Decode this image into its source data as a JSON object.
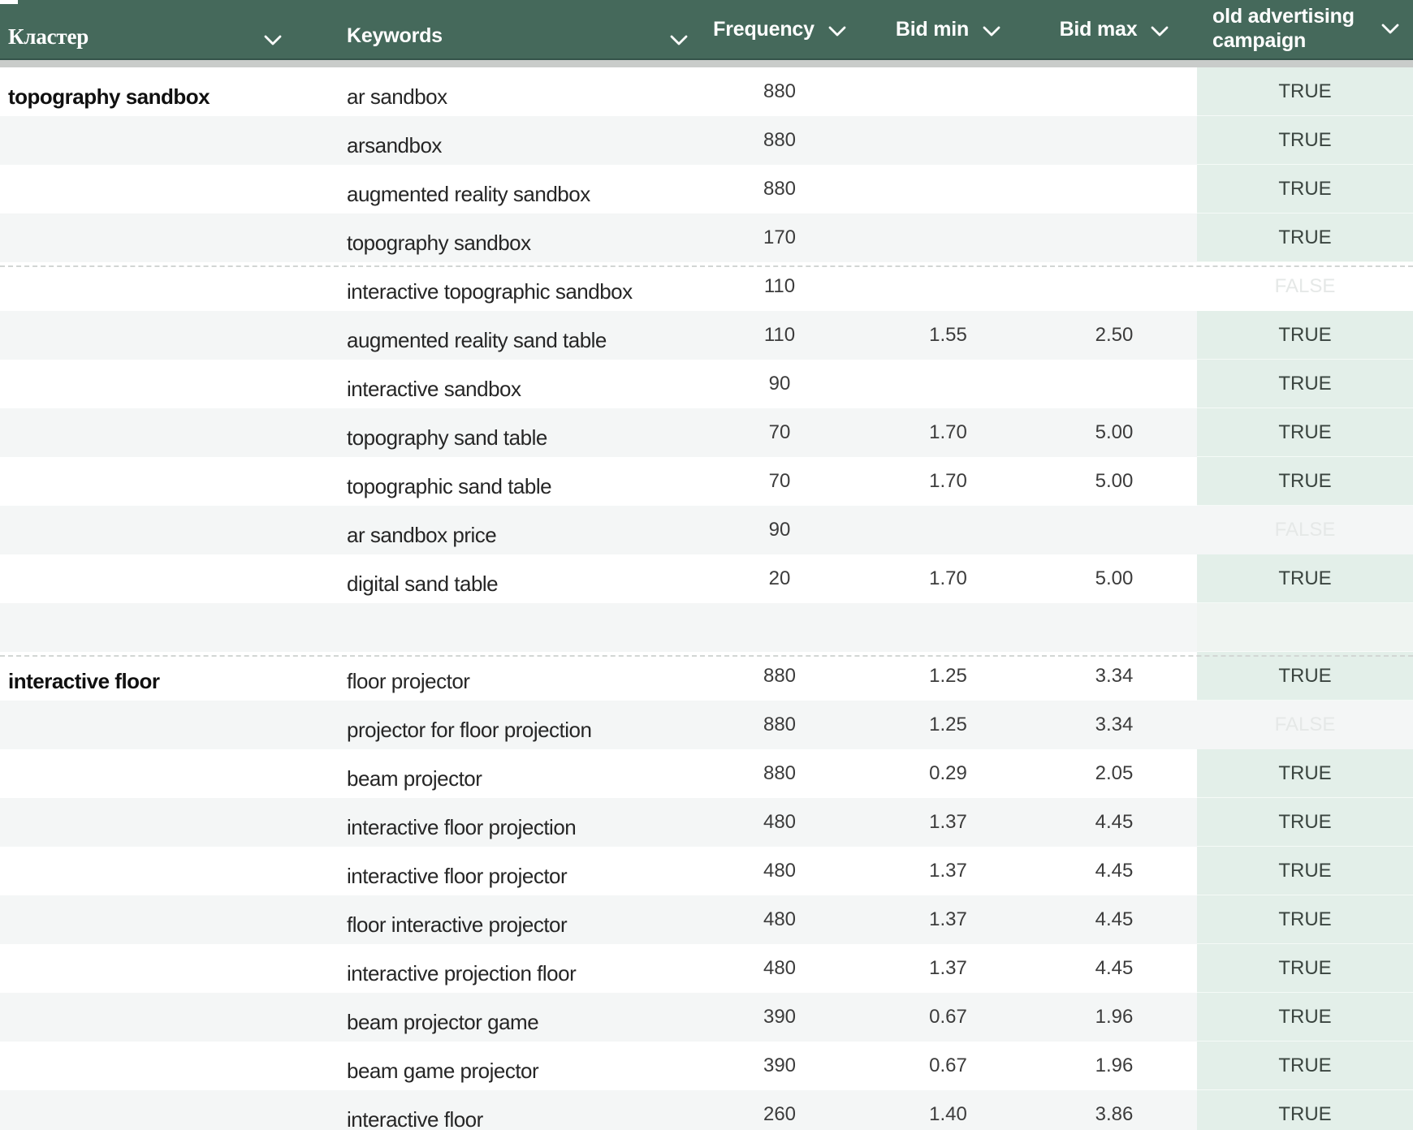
{
  "header": {
    "columns": [
      {
        "label": "Кластер"
      },
      {
        "label": "Keywords"
      },
      {
        "label": "Frequency"
      },
      {
        "label": "Bid min"
      },
      {
        "label": "Bid max"
      },
      {
        "label": "old advertising campaign"
      }
    ]
  },
  "colors": {
    "header_bg": "#45695B",
    "header_text": "#FFFFFF",
    "row_alt_bg": "#F4F6F6",
    "campaign_true_bg": "#E3EFE9",
    "campaign_true_text": "#3A443F",
    "campaign_false_text": "#E5E8E7"
  },
  "table": {
    "rows": [
      {
        "cluster": "topography sandbox",
        "keyword": "ar sandbox",
        "frequency": "880",
        "bid_min": "",
        "bid_max": "",
        "campaign": "TRUE"
      },
      {
        "cluster": "",
        "keyword": "arsandbox",
        "frequency": "880",
        "bid_min": "",
        "bid_max": "",
        "campaign": "TRUE"
      },
      {
        "cluster": "",
        "keyword": "augmented reality sandbox",
        "frequency": "880",
        "bid_min": "",
        "bid_max": "",
        "campaign": "TRUE"
      },
      {
        "cluster": "",
        "keyword": "topography sandbox",
        "frequency": "170",
        "bid_min": "",
        "bid_max": "",
        "campaign": "TRUE"
      },
      {
        "cluster": "",
        "keyword": "interactive topographic sandbox",
        "frequency": "110",
        "bid_min": "",
        "bid_max": "",
        "campaign": "FALSE",
        "dashed_top": true
      },
      {
        "cluster": "",
        "keyword": "augmented reality sand table",
        "frequency": "110",
        "bid_min": "1.55",
        "bid_max": "2.50",
        "campaign": "TRUE"
      },
      {
        "cluster": "",
        "keyword": "interactive sandbox",
        "frequency": "90",
        "bid_min": "",
        "bid_max": "",
        "campaign": "TRUE"
      },
      {
        "cluster": "",
        "keyword": "topography sand table",
        "frequency": "70",
        "bid_min": "1.70",
        "bid_max": "5.00",
        "campaign": "TRUE"
      },
      {
        "cluster": "",
        "keyword": "topographic sand table",
        "frequency": "70",
        "bid_min": "1.70",
        "bid_max": "5.00",
        "campaign": "TRUE"
      },
      {
        "cluster": "",
        "keyword": "ar sandbox price",
        "frequency": "90",
        "bid_min": "",
        "bid_max": "",
        "campaign": "FALSE"
      },
      {
        "cluster": "",
        "keyword": "digital sand table",
        "frequency": "20",
        "bid_min": "1.70",
        "bid_max": "5.00",
        "campaign": "TRUE"
      },
      {
        "cluster": "",
        "keyword": "",
        "frequency": "",
        "bid_min": "",
        "bid_max": "",
        "campaign": ""
      },
      {
        "cluster": "interactive floor",
        "keyword": "floor projector",
        "frequency": "880",
        "bid_min": "1.25",
        "bid_max": "3.34",
        "campaign": "TRUE",
        "dashed_top": true
      },
      {
        "cluster": "",
        "keyword": "projector for floor projection",
        "frequency": "880",
        "bid_min": "1.25",
        "bid_max": "3.34",
        "campaign": "FALSE"
      },
      {
        "cluster": "",
        "keyword": "beam projector",
        "frequency": "880",
        "bid_min": "0.29",
        "bid_max": "2.05",
        "campaign": "TRUE"
      },
      {
        "cluster": "",
        "keyword": "interactive floor projection",
        "frequency": "480",
        "bid_min": "1.37",
        "bid_max": "4.45",
        "campaign": "TRUE"
      },
      {
        "cluster": "",
        "keyword": "interactive floor projector",
        "frequency": "480",
        "bid_min": "1.37",
        "bid_max": "4.45",
        "campaign": "TRUE"
      },
      {
        "cluster": "",
        "keyword": "floor interactive projector",
        "frequency": "480",
        "bid_min": "1.37",
        "bid_max": "4.45",
        "campaign": "TRUE"
      },
      {
        "cluster": "",
        "keyword": "interactive projection floor",
        "frequency": "480",
        "bid_min": "1.37",
        "bid_max": "4.45",
        "campaign": "TRUE"
      },
      {
        "cluster": "",
        "keyword": "beam projector game",
        "frequency": "390",
        "bid_min": "0.67",
        "bid_max": "1.96",
        "campaign": "TRUE"
      },
      {
        "cluster": "",
        "keyword": "beam game projector",
        "frequency": "390",
        "bid_min": "0.67",
        "bid_max": "1.96",
        "campaign": "TRUE"
      },
      {
        "cluster": "",
        "keyword": "interactive floor",
        "frequency": "260",
        "bid_min": "1.40",
        "bid_max": "3.86",
        "campaign": "TRUE"
      }
    ]
  }
}
